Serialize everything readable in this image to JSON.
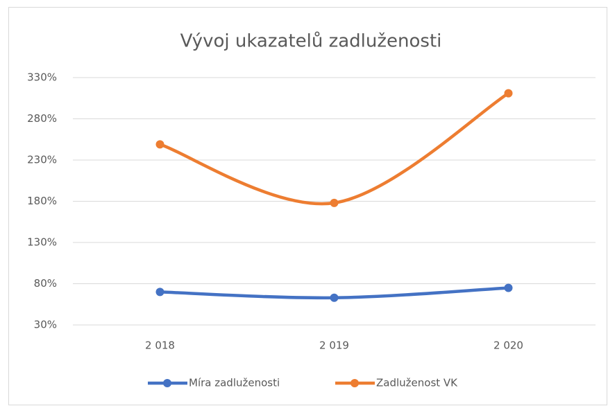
{
  "chart_data": {
    "type": "line",
    "title": "Vývoj ukazatelů zadluženosti",
    "categories": [
      "2 018",
      "2 019",
      "2 020"
    ],
    "series": [
      {
        "name": "Míra zadluženosti",
        "color": "#4472c4",
        "values": [
          70,
          63,
          75
        ]
      },
      {
        "name": "Zadluženost VK",
        "color": "#ed7d31",
        "values": [
          249,
          178,
          311
        ]
      }
    ],
    "ylim": [
      30,
      330
    ],
    "yticks": [
      {
        "value": 30,
        "label": "30%"
      },
      {
        "value": 80,
        "label": "80%"
      },
      {
        "value": 130,
        "label": "130%"
      },
      {
        "value": 180,
        "label": "180%"
      },
      {
        "value": 230,
        "label": "230%"
      },
      {
        "value": 280,
        "label": "280%"
      },
      {
        "value": 330,
        "label": "330%"
      }
    ],
    "grid": true,
    "smooth": true,
    "legend": "bottom"
  }
}
